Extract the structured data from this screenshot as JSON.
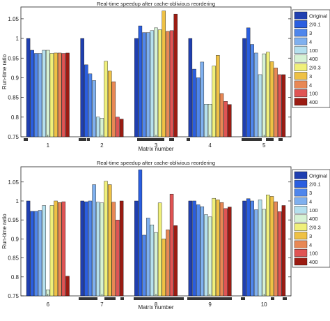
{
  "chart_data": [
    {
      "type": "bar",
      "title": "Real-time speedup after cache-oblivious reordering",
      "xlabel": "Matrix number",
      "ylabel": "Run-time ratio",
      "ylim": [
        0.75,
        1.08
      ],
      "yticks": [
        "0.75",
        "0.8",
        "0.85",
        "0.9",
        "0.95",
        "1",
        "1.05"
      ],
      "categories": [
        "1",
        "2",
        "3",
        "4",
        "5"
      ],
      "legend_position": "right",
      "series": [
        {
          "name": "Original",
          "color": "#1f3fb0",
          "values": [
            1.0,
            1.0,
            1.0,
            1.0,
            1.0
          ]
        },
        {
          "name": "2/0.1",
          "color": "#2a5ee0",
          "values": [
            0.97,
            0.933,
            1.032,
            0.922,
            1.027
          ]
        },
        {
          "name": "3",
          "color": "#4f86ec",
          "values": [
            0.962,
            0.91,
            1.015,
            0.9,
            0.985
          ]
        },
        {
          "name": "4",
          "color": "#7fb0ef",
          "values": [
            0.962,
            0.893,
            1.015,
            0.94,
            0.963
          ]
        },
        {
          "name": "100",
          "color": "#b5e0ee",
          "values": [
            0.97,
            0.8,
            1.02,
            0.833,
            0.908
          ]
        },
        {
          "name": "400",
          "color": "#d6f2d4",
          "values": [
            0.97,
            0.797,
            1.027,
            0.833,
            0.961
          ]
        },
        {
          "name": "2/0.3",
          "color": "#f0f07a",
          "values": [
            0.962,
            0.942,
            1.022,
            0.93,
            0.965
          ]
        },
        {
          "name": "3",
          "color": "#efc144",
          "values": [
            0.963,
            0.917,
            1.07,
            0.957,
            0.941
          ]
        },
        {
          "name": "4",
          "color": "#e88855",
          "values": [
            0.963,
            0.89,
            1.018,
            0.86,
            0.925
          ]
        },
        {
          "name": "100",
          "color": "#e05454",
          "values": [
            0.962,
            0.8,
            1.02,
            0.84,
            0.908
          ]
        },
        {
          "name": "400",
          "color": "#9b1b12",
          "values": [
            0.963,
            0.795,
            1.062,
            0.832,
            0.908
          ]
        }
      ]
    },
    {
      "type": "bar",
      "title": "Real-time speedup after cache-oblivious reordering",
      "xlabel": "Matrix number",
      "ylabel": "Run-time ratio",
      "ylim": [
        0.75,
        1.09
      ],
      "yticks": [
        "0.75",
        "0.8",
        "0.85",
        "0.9",
        "0.95",
        "1",
        "1.05"
      ],
      "categories": [
        "6",
        "7",
        "8",
        "9",
        "10"
      ],
      "legend_position": "right",
      "series": [
        {
          "name": "Original",
          "color": "#1f3fb0",
          "values": [
            1.0,
            1.0,
            1.0,
            1.0,
            1.0
          ]
        },
        {
          "name": "2/0.1",
          "color": "#2a5ee0",
          "values": [
            0.973,
            0.998,
            1.082,
            1.0,
            1.006
          ]
        },
        {
          "name": "3",
          "color": "#4f86ec",
          "values": [
            0.973,
            1.0,
            0.91,
            0.99,
            1.0
          ]
        },
        {
          "name": "4",
          "color": "#7fb0ef",
          "values": [
            0.975,
            1.043,
            0.955,
            0.985,
            0.977
          ]
        },
        {
          "name": "100",
          "color": "#b5e0ee",
          "values": [
            0.988,
            0.997,
            0.937,
            0.964,
            1.003
          ]
        },
        {
          "name": "400",
          "color": "#d6f2d4",
          "values": [
            0.766,
            0.995,
            0.917,
            0.958,
            0.978
          ]
        },
        {
          "name": "2/0.3",
          "color": "#f0f07a",
          "values": [
            0.988,
            1.052,
            0.995,
            1.007,
            1.016
          ]
        },
        {
          "name": "3",
          "color": "#efc144",
          "values": [
            1.0,
            1.043,
            0.9,
            1.003,
            1.012
          ]
        },
        {
          "name": "4",
          "color": "#e88855",
          "values": [
            0.996,
            0.997,
            0.924,
            0.996,
            0.998
          ]
        },
        {
          "name": "100",
          "color": "#e05454",
          "values": [
            0.998,
            0.95,
            1.018,
            0.98,
            0.972
          ]
        },
        {
          "name": "400",
          "color": "#9b1b12",
          "values": [
            0.802,
            1.0,
            0.935,
            0.984,
            0.988
          ]
        }
      ]
    }
  ]
}
